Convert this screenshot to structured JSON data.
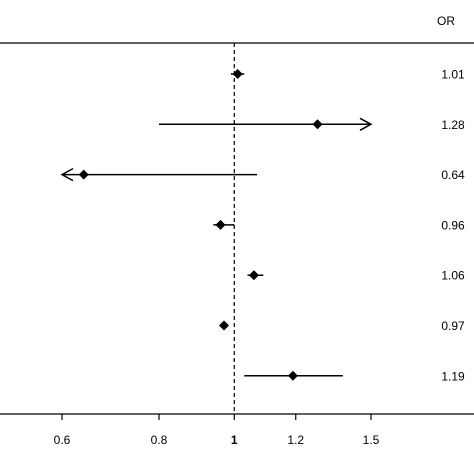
{
  "chart_data": {
    "type": "forest",
    "column_header": "OR",
    "x_scale": "log",
    "reference_line": 1,
    "x_ticks": [
      {
        "value": 0.6,
        "label": "0.6"
      },
      {
        "value": 0.8,
        "label": "0.8"
      },
      {
        "value": 1,
        "label": "1",
        "bold": true
      },
      {
        "value": 1.2,
        "label": "1.2"
      },
      {
        "value": 1.5,
        "label": "1.5"
      }
    ],
    "rows": [
      {
        "or": 1.01,
        "label": "1.01",
        "lower": 0.99,
        "upper": 1.03,
        "arrow_left": false,
        "arrow_right": false
      },
      {
        "or": 1.28,
        "label": "1.28",
        "lower": 0.8,
        "upper": 1.5,
        "arrow_left": false,
        "arrow_right": true
      },
      {
        "or": 0.64,
        "label": "0.64",
        "lower": 0.6,
        "upper": 1.07,
        "arrow_left": true,
        "arrow_right": false
      },
      {
        "or": 0.96,
        "label": "0.96",
        "lower": 0.94,
        "upper": 1.0,
        "arrow_left": false,
        "arrow_right": false
      },
      {
        "or": 1.06,
        "label": "1.06",
        "lower": 1.04,
        "upper": 1.09,
        "arrow_left": false,
        "arrow_right": false
      },
      {
        "or": 0.97,
        "label": "0.97",
        "lower": 0.96,
        "upper": 0.98,
        "arrow_left": false,
        "arrow_right": false
      },
      {
        "or": 1.19,
        "label": "1.19",
        "lower": 1.03,
        "upper": 1.38,
        "arrow_left": false,
        "arrow_right": false
      }
    ]
  }
}
